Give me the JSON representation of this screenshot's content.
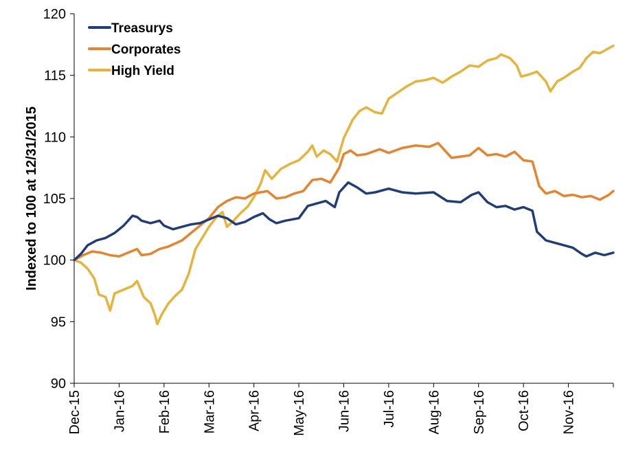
{
  "chart_data": {
    "type": "line",
    "xlabel": "",
    "ylabel": "Indexed to 100 at 12/31/2015",
    "ylim": [
      90,
      120
    ],
    "yticks": [
      90,
      95,
      100,
      105,
      110,
      115,
      120
    ],
    "x_tick_labels": [
      "Dec-15",
      "Jan-16",
      "Feb-16",
      "Mar-16",
      "Apr-16",
      "May-16",
      "Jun-16",
      "Jul-16",
      "Aug-16",
      "Sep-16",
      "Oct-16",
      "Nov-16"
    ],
    "grid": false,
    "legend_position": "top-left",
    "series": [
      {
        "name": "Treasurys",
        "color": "#1f3d7a",
        "points": [
          [
            0,
            100.0
          ],
          [
            0.15,
            100.5
          ],
          [
            0.3,
            101.2
          ],
          [
            0.5,
            101.6
          ],
          [
            0.7,
            101.8
          ],
          [
            0.9,
            102.2
          ],
          [
            1.1,
            102.8
          ],
          [
            1.3,
            103.6
          ],
          [
            1.4,
            103.5
          ],
          [
            1.5,
            103.2
          ],
          [
            1.7,
            103.0
          ],
          [
            1.9,
            103.2
          ],
          [
            2.0,
            102.8
          ],
          [
            2.2,
            102.5
          ],
          [
            2.4,
            102.7
          ],
          [
            2.6,
            102.9
          ],
          [
            2.8,
            103.0
          ],
          [
            3.0,
            103.3
          ],
          [
            3.2,
            103.6
          ],
          [
            3.4,
            103.4
          ],
          [
            3.6,
            102.9
          ],
          [
            3.8,
            103.1
          ],
          [
            4.0,
            103.5
          ],
          [
            4.2,
            103.8
          ],
          [
            4.35,
            103.3
          ],
          [
            4.5,
            103.0
          ],
          [
            4.7,
            103.2
          ],
          [
            5.0,
            103.4
          ],
          [
            5.2,
            104.4
          ],
          [
            5.4,
            104.6
          ],
          [
            5.6,
            104.8
          ],
          [
            5.8,
            104.3
          ],
          [
            5.9,
            105.5
          ],
          [
            6.1,
            106.3
          ],
          [
            6.3,
            105.9
          ],
          [
            6.5,
            105.4
          ],
          [
            6.7,
            105.5
          ],
          [
            7.0,
            105.8
          ],
          [
            7.3,
            105.5
          ],
          [
            7.6,
            105.4
          ],
          [
            8.0,
            105.5
          ],
          [
            8.3,
            104.8
          ],
          [
            8.6,
            104.7
          ],
          [
            8.85,
            105.3
          ],
          [
            9.0,
            105.5
          ],
          [
            9.2,
            104.7
          ],
          [
            9.4,
            104.3
          ],
          [
            9.6,
            104.4
          ],
          [
            9.8,
            104.1
          ],
          [
            10.0,
            104.3
          ],
          [
            10.2,
            104.0
          ],
          [
            10.3,
            102.3
          ],
          [
            10.5,
            101.6
          ],
          [
            10.7,
            101.4
          ],
          [
            10.9,
            101.2
          ],
          [
            11.1,
            101.0
          ],
          [
            11.3,
            100.5
          ],
          [
            11.4,
            100.3
          ],
          [
            11.6,
            100.6
          ],
          [
            11.8,
            100.4
          ],
          [
            12.0,
            100.6
          ]
        ]
      },
      {
        "name": "Corporates",
        "color": "#e8822b",
        "points": [
          [
            0,
            100.0
          ],
          [
            0.2,
            100.4
          ],
          [
            0.4,
            100.7
          ],
          [
            0.6,
            100.6
          ],
          [
            0.8,
            100.4
          ],
          [
            1.0,
            100.3
          ],
          [
            1.2,
            100.6
          ],
          [
            1.4,
            100.9
          ],
          [
            1.5,
            100.4
          ],
          [
            1.7,
            100.5
          ],
          [
            1.9,
            100.9
          ],
          [
            2.1,
            101.1
          ],
          [
            2.4,
            101.6
          ],
          [
            2.6,
            102.2
          ],
          [
            2.8,
            102.8
          ],
          [
            3.0,
            103.4
          ],
          [
            3.2,
            104.3
          ],
          [
            3.4,
            104.8
          ],
          [
            3.6,
            105.1
          ],
          [
            3.8,
            105.0
          ],
          [
            4.0,
            105.4
          ],
          [
            4.3,
            105.6
          ],
          [
            4.5,
            105.0
          ],
          [
            4.7,
            105.1
          ],
          [
            4.9,
            105.4
          ],
          [
            5.1,
            105.6
          ],
          [
            5.3,
            106.5
          ],
          [
            5.5,
            106.6
          ],
          [
            5.7,
            106.3
          ],
          [
            5.9,
            107.5
          ],
          [
            6.0,
            108.6
          ],
          [
            6.15,
            108.9
          ],
          [
            6.3,
            108.5
          ],
          [
            6.5,
            108.6
          ],
          [
            6.8,
            109.0
          ],
          [
            7.0,
            108.7
          ],
          [
            7.3,
            109.1
          ],
          [
            7.6,
            109.3
          ],
          [
            7.9,
            109.2
          ],
          [
            8.1,
            109.5
          ],
          [
            8.4,
            108.3
          ],
          [
            8.6,
            108.4
          ],
          [
            8.8,
            108.5
          ],
          [
            9.0,
            109.1
          ],
          [
            9.2,
            108.5
          ],
          [
            9.4,
            108.6
          ],
          [
            9.6,
            108.4
          ],
          [
            9.8,
            108.8
          ],
          [
            10.0,
            108.1
          ],
          [
            10.2,
            108.0
          ],
          [
            10.35,
            106.0
          ],
          [
            10.5,
            105.4
          ],
          [
            10.7,
            105.6
          ],
          [
            10.9,
            105.2
          ],
          [
            11.1,
            105.3
          ],
          [
            11.3,
            105.1
          ],
          [
            11.5,
            105.2
          ],
          [
            11.7,
            104.9
          ],
          [
            11.9,
            105.3
          ],
          [
            12.0,
            105.6
          ]
        ]
      },
      {
        "name": "High Yield",
        "color": "#e8b33a",
        "points": [
          [
            0,
            100.0
          ],
          [
            0.15,
            99.8
          ],
          [
            0.3,
            99.3
          ],
          [
            0.45,
            98.5
          ],
          [
            0.55,
            97.2
          ],
          [
            0.7,
            97.0
          ],
          [
            0.8,
            95.9
          ],
          [
            0.9,
            97.3
          ],
          [
            1.1,
            97.6
          ],
          [
            1.3,
            97.9
          ],
          [
            1.4,
            98.3
          ],
          [
            1.55,
            97.0
          ],
          [
            1.7,
            96.5
          ],
          [
            1.8,
            95.5
          ],
          [
            1.85,
            94.8
          ],
          [
            1.95,
            95.6
          ],
          [
            2.1,
            96.5
          ],
          [
            2.25,
            97.1
          ],
          [
            2.4,
            97.6
          ],
          [
            2.55,
            98.9
          ],
          [
            2.7,
            100.9
          ],
          [
            2.85,
            101.8
          ],
          [
            3.0,
            102.7
          ],
          [
            3.15,
            103.4
          ],
          [
            3.3,
            103.9
          ],
          [
            3.4,
            102.7
          ],
          [
            3.55,
            103.2
          ],
          [
            3.7,
            103.8
          ],
          [
            3.85,
            104.3
          ],
          [
            4.0,
            105.1
          ],
          [
            4.15,
            106.2
          ],
          [
            4.25,
            107.3
          ],
          [
            4.4,
            106.6
          ],
          [
            4.6,
            107.4
          ],
          [
            4.8,
            107.8
          ],
          [
            5.0,
            108.1
          ],
          [
            5.2,
            108.8
          ],
          [
            5.3,
            109.3
          ],
          [
            5.4,
            108.4
          ],
          [
            5.55,
            108.9
          ],
          [
            5.7,
            108.6
          ],
          [
            5.85,
            108.0
          ],
          [
            6.0,
            109.9
          ],
          [
            6.2,
            111.4
          ],
          [
            6.35,
            112.1
          ],
          [
            6.5,
            112.4
          ],
          [
            6.7,
            112.0
          ],
          [
            6.85,
            111.9
          ],
          [
            7.0,
            113.1
          ],
          [
            7.2,
            113.6
          ],
          [
            7.4,
            114.1
          ],
          [
            7.6,
            114.5
          ],
          [
            7.8,
            114.6
          ],
          [
            8.0,
            114.8
          ],
          [
            8.2,
            114.4
          ],
          [
            8.4,
            114.9
          ],
          [
            8.6,
            115.3
          ],
          [
            8.8,
            115.8
          ],
          [
            9.0,
            115.7
          ],
          [
            9.2,
            116.2
          ],
          [
            9.4,
            116.4
          ],
          [
            9.5,
            116.7
          ],
          [
            9.7,
            116.4
          ],
          [
            9.85,
            115.8
          ],
          [
            9.95,
            114.9
          ],
          [
            10.15,
            115.1
          ],
          [
            10.3,
            115.3
          ],
          [
            10.5,
            114.5
          ],
          [
            10.6,
            113.7
          ],
          [
            10.75,
            114.5
          ],
          [
            10.9,
            114.8
          ],
          [
            11.1,
            115.3
          ],
          [
            11.25,
            115.6
          ],
          [
            11.4,
            116.4
          ],
          [
            11.55,
            116.9
          ],
          [
            11.7,
            116.8
          ],
          [
            11.85,
            117.1
          ],
          [
            12.0,
            117.4
          ]
        ]
      }
    ]
  }
}
